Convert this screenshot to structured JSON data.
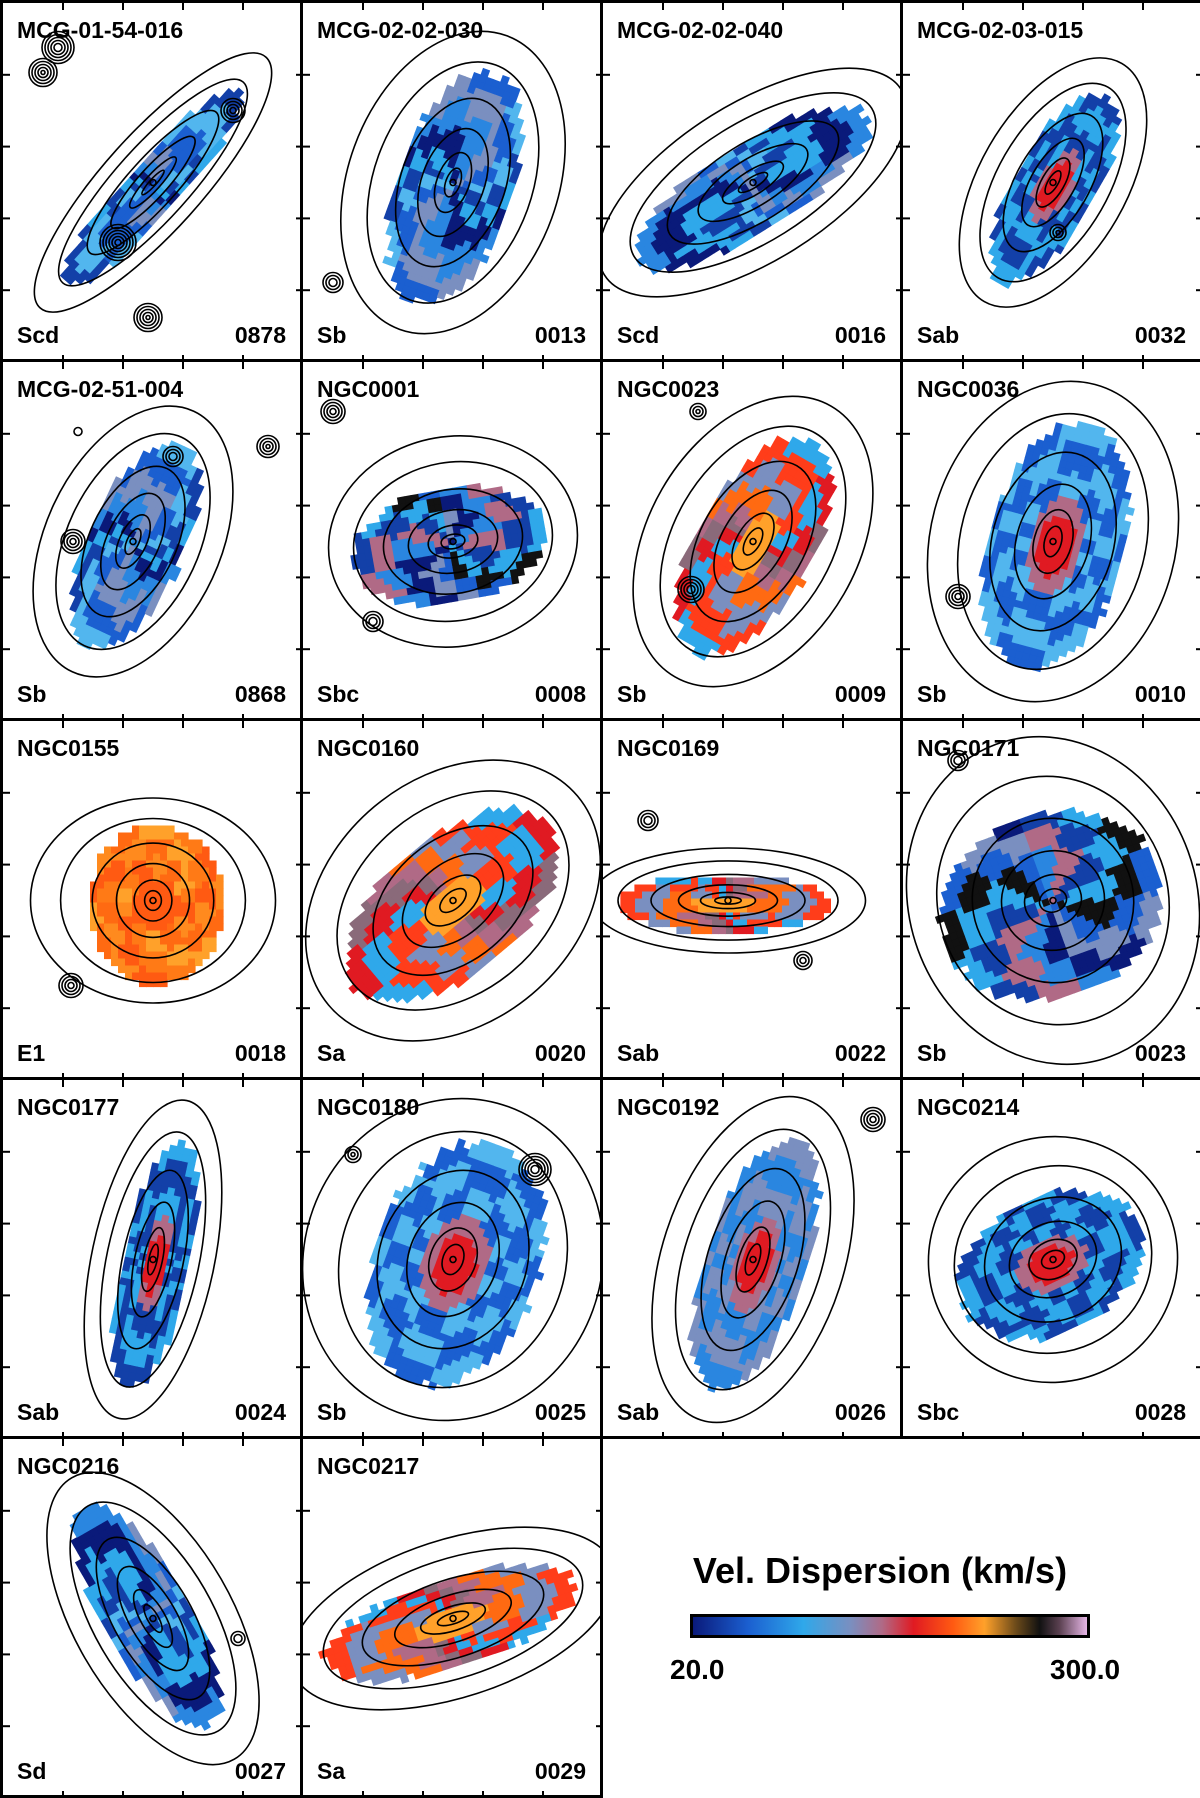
{
  "panels": [
    {
      "name": "MCG-01-54-016",
      "type": "Scd",
      "code": "0878",
      "angle": 42,
      "rx": 28,
      "ry": 135,
      "dx": 0,
      "dy": 0,
      "map": "blue",
      "stars": [
        [
          -95,
          -135,
          16
        ],
        [
          -110,
          -110,
          14
        ],
        [
          -35,
          60,
          18
        ],
        [
          80,
          -72,
          12
        ],
        [
          -5,
          135,
          14
        ]
      ]
    },
    {
      "name": "MCG-02-02-030",
      "type": "Sb",
      "code": "0013",
      "angle": 20,
      "rx": 60,
      "ry": 125,
      "dx": 0,
      "dy": 0,
      "map": "blue",
      "stars": [
        [
          -120,
          100,
          10
        ]
      ]
    },
    {
      "name": "MCG-02-02-040",
      "type": "Scd",
      "code": "0016",
      "angle": 58,
      "rx": 45,
      "ry": 140,
      "dx": 0,
      "dy": 0,
      "map": "blue",
      "stars": []
    },
    {
      "name": "MCG-02-03-015",
      "type": "Sab",
      "code": "0032",
      "angle": 30,
      "rx": 42,
      "ry": 110,
      "dx": 0,
      "dy": 0,
      "map": "core",
      "stars": [
        [
          5,
          50,
          8
        ]
      ]
    },
    {
      "name": "MCG-02-51-004",
      "type": "Sb",
      "code": "0868",
      "angle": 25,
      "rx": 50,
      "ry": 115,
      "dx": -20,
      "dy": 0,
      "map": "blue",
      "stars": [
        [
          20,
          -85,
          10
        ],
        [
          -80,
          0,
          12
        ],
        [
          115,
          -95,
          11
        ],
        [
          -75,
          -110,
          4
        ]
      ]
    },
    {
      "name": "NGC0001",
      "type": "Sbc",
      "code": "0008",
      "angle": 80,
      "rx": 60,
      "ry": 100,
      "dx": 0,
      "dy": 0,
      "map": "mixed",
      "stars": [
        [
          -120,
          -130,
          12
        ],
        [
          -80,
          80,
          10
        ]
      ]
    },
    {
      "name": "NGC0023",
      "type": "Sb",
      "code": "0009",
      "angle": 30,
      "rx": 60,
      "ry": 125,
      "dx": 0,
      "dy": 0,
      "map": "hot",
      "stars": [
        [
          -62,
          48,
          13
        ],
        [
          -55,
          -130,
          8
        ]
      ]
    },
    {
      "name": "NGC0036",
      "type": "Sb",
      "code": "0010",
      "angle": 15,
      "rx": 70,
      "ry": 130,
      "dx": 0,
      "dy": 0,
      "map": "core",
      "stars": [
        [
          -95,
          55,
          12
        ]
      ]
    },
    {
      "name": "NGC0155",
      "type": "E1",
      "code": "0018",
      "angle": 0,
      "rx": 70,
      "ry": 82,
      "dx": 0,
      "dy": 0,
      "map": "orange",
      "stars": [
        [
          -82,
          85,
          12
        ]
      ]
    },
    {
      "name": "NGC0160",
      "type": "Sa",
      "code": "0020",
      "angle": 50,
      "rx": 70,
      "ry": 130,
      "dx": 0,
      "dy": 0,
      "map": "hot",
      "stars": []
    },
    {
      "name": "NGC0169",
      "type": "Sab",
      "code": "0022",
      "angle": 90,
      "rx": 30,
      "ry": 110,
      "dx": -25,
      "dy": 0,
      "map": "hot",
      "stars": [
        [
          -105,
          -80,
          10
        ],
        [
          50,
          60,
          9
        ]
      ]
    },
    {
      "name": "NGC0171",
      "type": "Sb",
      "code": "0023",
      "angle": 70,
      "rx": 95,
      "ry": 115,
      "dx": 0,
      "dy": 0,
      "map": "mixed",
      "stars": [
        [
          -95,
          -140,
          10
        ]
      ]
    },
    {
      "name": "NGC0177",
      "type": "Sab",
      "code": "0024",
      "angle": 12,
      "rx": 35,
      "ry": 130,
      "dx": 0,
      "dy": 0,
      "map": "core",
      "stars": []
    },
    {
      "name": "NGC0180",
      "type": "Sb",
      "code": "0025",
      "angle": 20,
      "rx": 85,
      "ry": 130,
      "dx": 0,
      "dy": 0,
      "map": "core",
      "stars": [
        [
          82,
          -90,
          16
        ],
        [
          -100,
          -105,
          8
        ]
      ]
    },
    {
      "name": "NGC0192",
      "type": "Sab",
      "code": "0026",
      "angle": 18,
      "rx": 52,
      "ry": 135,
      "dx": 0,
      "dy": 0,
      "map": "core",
      "stars": [
        [
          120,
          -140,
          12
        ]
      ]
    },
    {
      "name": "NGC0214",
      "type": "Sbc",
      "code": "0028",
      "angle": 65,
      "rx": 70,
      "ry": 100,
      "dx": 0,
      "dy": 0,
      "map": "core",
      "stars": []
    },
    {
      "name": "NGC0216",
      "type": "Sd",
      "code": "0027",
      "angle": 150,
      "rx": 45,
      "ry": 130,
      "dx": 0,
      "dy": 0,
      "map": "blue",
      "stars": [
        [
          85,
          20,
          7
        ]
      ]
    },
    {
      "name": "NGC0217",
      "type": "Sa",
      "code": "0029",
      "angle": 72,
      "rx": 45,
      "ry": 135,
      "dx": 0,
      "dy": 0,
      "map": "hot",
      "stars": []
    }
  ],
  "legend": {
    "title": "Vel. Dispersion (km/s)",
    "min_label": "20.0",
    "max_label": "300.0"
  },
  "colors": {
    "border": "#000000",
    "contour": "#000000"
  }
}
